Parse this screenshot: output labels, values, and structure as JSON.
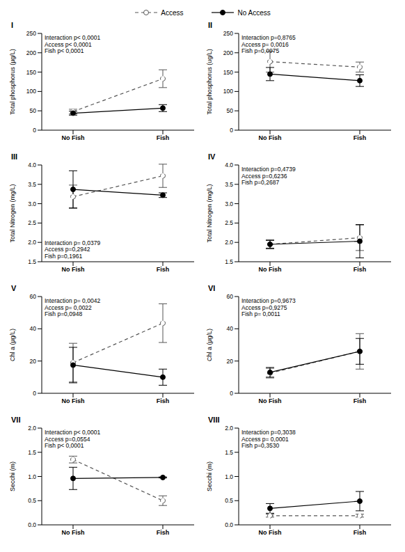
{
  "chart_data": [
    {
      "type": "line",
      "title": "I",
      "legend": "top",
      "categories": [
        "No Fish",
        "Fish"
      ],
      "y_label": "Total phosphorus (µg/L)",
      "ylim": [
        0,
        250
      ],
      "yticks": [
        0,
        50,
        100,
        150,
        200,
        250
      ],
      "series": [
        {
          "name": "Access",
          "color": "#555555",
          "line_style": "dashed",
          "marker": "open",
          "values": [
            48,
            133
          ],
          "errors": [
            6,
            23
          ]
        },
        {
          "name": "No Access",
          "color": "#000000",
          "line_style": "solid",
          "marker": "filled",
          "values": [
            44,
            57
          ],
          "errors": [
            5,
            9
          ]
        }
      ],
      "annotations": [
        "Interaction p< 0,0001",
        "Access p< 0,0001",
        "Fish p< 0,0001"
      ]
    },
    {
      "type": "line",
      "title": "II",
      "categories": [
        "No Fish",
        "Fish"
      ],
      "y_label": "Total phosphorus (ug/L)",
      "ylim": [
        0,
        250
      ],
      "yticks": [
        0,
        50,
        100,
        150,
        200,
        250
      ],
      "series": [
        {
          "name": "Access",
          "color": "#555555",
          "line_style": "dashed",
          "marker": "open",
          "values": [
            177,
            163
          ],
          "errors": [
            27,
            13
          ]
        },
        {
          "name": "No Access",
          "color": "#000000",
          "line_style": "solid",
          "marker": "filled",
          "values": [
            145,
            128
          ],
          "errors": [
            17,
            15
          ]
        }
      ],
      "annotations": [
        "Interaction p=0,8765",
        "Access p= 0,0016",
        "Fish p=0,0975"
      ]
    },
    {
      "type": "line",
      "title": "III",
      "categories": [
        "No Fish",
        "Fish"
      ],
      "y_label": "Total Nitrogen (mg/L)",
      "ylim": [
        1.5,
        4
      ],
      "yticks": [
        1.5,
        {
          "value": 2,
          "label": "2.0"
        },
        2.5,
        {
          "value": 3,
          "label": "3.0"
        },
        3.5,
        {
          "value": 4,
          "label": "4.0"
        }
      ],
      "series": [
        {
          "name": "Access",
          "color": "#555555",
          "line_style": "dashed",
          "marker": "open",
          "values": [
            3.18,
            3.72
          ],
          "errors": [
            0.3,
            0.3
          ]
        },
        {
          "name": "No Access",
          "color": "#000000",
          "line_style": "solid",
          "marker": "filled",
          "values": [
            3.37,
            3.22
          ],
          "errors": [
            0.48,
            0.06
          ]
        }
      ],
      "annotations": [
        "Interaction p= 0,0379",
        "Access p=0,2942",
        "Fish p=0,1961"
      ]
    },
    {
      "type": "line",
      "title": "IV",
      "categories": [
        "No Fish",
        "Fish"
      ],
      "y_label": "Total Nitrogen (mg/L)",
      "ylim": [
        1.5,
        4
      ],
      "yticks": [
        1.5,
        {
          "value": 2,
          "label": "2.0"
        },
        2.5,
        {
          "value": 3,
          "label": "3.0"
        },
        3.5,
        {
          "value": 4,
          "label": "4.0"
        }
      ],
      "series": [
        {
          "name": "Access",
          "color": "#555555",
          "line_style": "dashed",
          "marker": "open",
          "values": [
            1.95,
            2.12
          ],
          "errors": [
            0.12,
            0.33
          ]
        },
        {
          "name": "No Access",
          "color": "#000000",
          "line_style": "solid",
          "marker": "filled",
          "values": [
            1.95,
            2.03
          ],
          "errors": [
            0.1,
            0.43
          ]
        }
      ],
      "annotations": [
        "Interaction p=0,4739",
        "Access p=0,6236",
        "Fish p=0,2687"
      ]
    },
    {
      "type": "line",
      "title": "V",
      "categories": [
        "No Fish",
        "Fish"
      ],
      "y_label": "Chl a (µg/L)",
      "ylim": [
        0,
        60
      ],
      "yticks": [
        0,
        20,
        40,
        60
      ],
      "series": [
        {
          "name": "Access",
          "color": "#555555",
          "line_style": "dashed",
          "marker": "open",
          "values": [
            19,
            43.5
          ],
          "errors": [
            12,
            12
          ]
        },
        {
          "name": "No Access",
          "color": "#000000",
          "line_style": "solid",
          "marker": "filled",
          "values": [
            17.5,
            10
          ],
          "errors": [
            11,
            5
          ]
        }
      ],
      "annotations": [
        "Interaction p= 0,0042",
        "Access p= 0,0022",
        "Fish p=0,0948"
      ]
    },
    {
      "type": "line",
      "title": "VI",
      "categories": [
        "No Fish",
        "Fish"
      ],
      "y_label": "Chl a (µg/L)",
      "ylim": [
        0,
        60
      ],
      "yticks": [
        0,
        20,
        40,
        60
      ],
      "series": [
        {
          "name": "Access",
          "color": "#555555",
          "line_style": "dashed",
          "marker": "open",
          "values": [
            12.5,
            26
          ],
          "errors": [
            3,
            11
          ]
        },
        {
          "name": "No Access",
          "color": "#000000",
          "line_style": "solid",
          "marker": "filled",
          "values": [
            13,
            26
          ],
          "errors": [
            3,
            8
          ]
        }
      ],
      "annotations": [
        "Interaction p=0,9673",
        "Access p=0,9275",
        "Fish p= 0,0011"
      ]
    },
    {
      "type": "line",
      "title": "VII",
      "categories": [
        "No Fish",
        "Fish"
      ],
      "y_label": "Secchi (m)",
      "ylim": [
        0,
        2
      ],
      "yticks": [
        {
          "value": 0,
          "label": "0.0"
        },
        0.5,
        {
          "value": 1,
          "label": "1.0"
        },
        1.5,
        {
          "value": 2,
          "label": "2.0"
        }
      ],
      "series": [
        {
          "name": "Access",
          "color": "#555555",
          "line_style": "dashed",
          "marker": "open",
          "values": [
            1.35,
            0.5
          ],
          "errors": [
            0.07,
            0.1
          ]
        },
        {
          "name": "No Access",
          "color": "#000000",
          "line_style": "solid",
          "marker": "filled",
          "values": [
            0.96,
            0.98
          ],
          "errors": [
            0.23,
            0.01
          ]
        }
      ],
      "annotations": [
        "Interaction p< 0,0001",
        "Access p=0,0554",
        "Fish p< 0,0001"
      ]
    },
    {
      "type": "line",
      "title": "VIII",
      "categories": [
        "No Fish",
        "Fish"
      ],
      "y_label": "Secchi (m)",
      "ylim": [
        0,
        2
      ],
      "yticks": [
        {
          "value": 0,
          "label": "0.0"
        },
        0.5,
        {
          "value": 1,
          "label": "1.0"
        },
        1.5,
        {
          "value": 2,
          "label": "2.0"
        }
      ],
      "series": [
        {
          "name": "Access",
          "color": "#555555",
          "line_style": "dashed",
          "marker": "open",
          "values": [
            0.19,
            0.19
          ],
          "errors": [
            0.03,
            0.03
          ]
        },
        {
          "name": "No Access",
          "color": "#000000",
          "line_style": "solid",
          "marker": "filled",
          "values": [
            0.34,
            0.49
          ],
          "errors": [
            0.1,
            0.2
          ]
        }
      ],
      "annotations": [
        "Interaction p=0,3038",
        "Access p= 0,0001",
        "Fish p=0,3530"
      ]
    }
  ]
}
